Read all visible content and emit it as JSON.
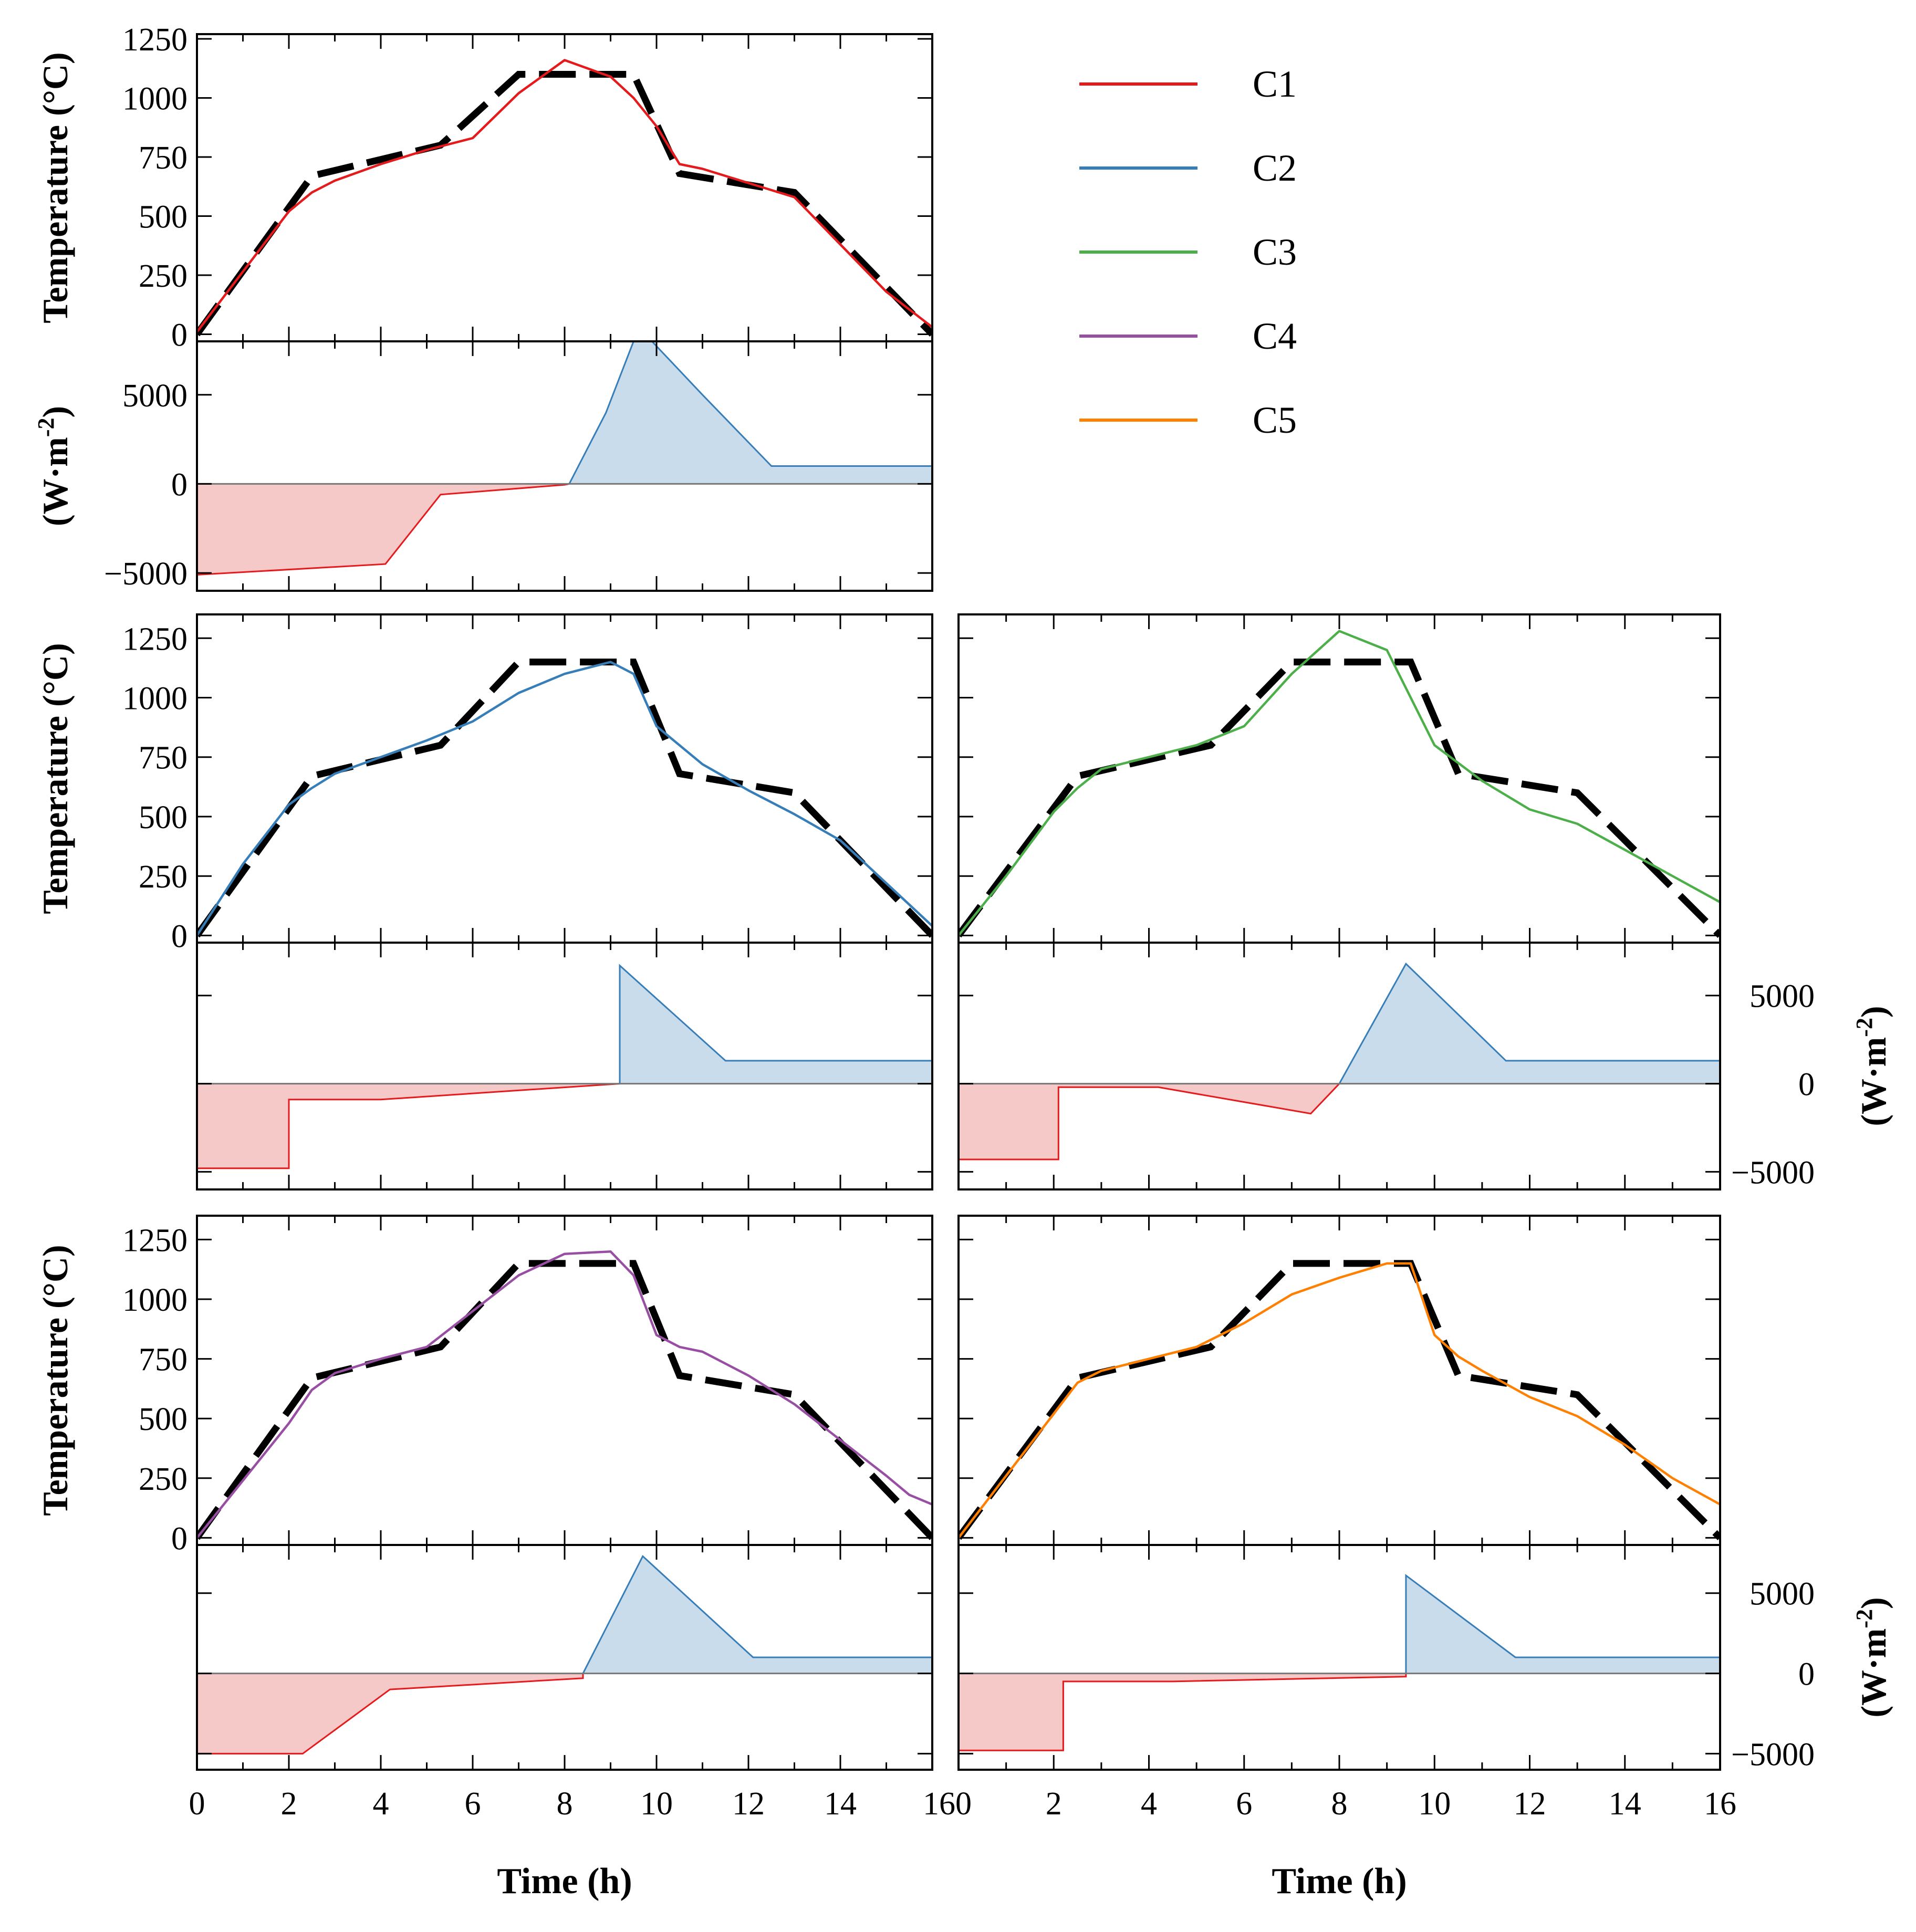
{
  "figure": {
    "x_axis_title": "Time (h)",
    "temp_axis_title": "Temperature (°C)",
    "flux_axis_title": "(W·m",
    "flux_axis_sup": "-2",
    "flux_axis_close": ")",
    "x_ticks": [
      "0",
      "2",
      "4",
      "6",
      "8",
      "10",
      "12",
      "14",
      "16"
    ],
    "x_tick_last_left": "160",
    "temp_ticks": [
      "0",
      "250",
      "500",
      "750",
      "1000",
      "1250"
    ],
    "flux_ticks": [
      "−5000",
      "0",
      "5000"
    ],
    "colors": {
      "target": "#000000",
      "C1": "#e41a1c",
      "C2": "#377eb8",
      "C3": "#4daf4a",
      "C4": "#984ea3",
      "C5": "#ff7f00",
      "heat_negative": "#e41a1c",
      "heat_negative_fill": "#f6c9c9",
      "heat_positive": "#377eb8",
      "heat_positive_fill": "#c9dcec"
    }
  },
  "legend": [
    {
      "label": "C1",
      "color": "#e41a1c"
    },
    {
      "label": "C2",
      "color": "#377eb8"
    },
    {
      "label": "C3",
      "color": "#4daf4a"
    },
    {
      "label": "C4",
      "color": "#984ea3"
    },
    {
      "label": "C5",
      "color": "#ff7f00"
    }
  ],
  "chart_data": [
    {
      "type": "line",
      "case": "C1",
      "xlabel": "Time (h)",
      "ylabel": "Temperature (°C)",
      "xlim": [
        0,
        16
      ],
      "ylim": [
        -30,
        1270
      ],
      "target": {
        "x": [
          0,
          2.5,
          5.3,
          7,
          9.5,
          10.5,
          13,
          16
        ],
        "y": [
          0,
          670,
          800,
          1100,
          1100,
          680,
          600,
          0
        ]
      },
      "simulated": {
        "x": [
          0,
          2,
          2.5,
          3,
          4,
          5,
          6,
          7,
          8,
          9,
          9.5,
          10,
          10.5,
          11,
          12,
          13,
          14,
          15,
          16
        ],
        "y": [
          10,
          520,
          600,
          650,
          720,
          780,
          830,
          1020,
          1160,
          1090,
          1000,
          880,
          720,
          700,
          640,
          580,
          380,
          180,
          30
        ]
      },
      "heat_flux": {
        "xlabel": "Time (h)",
        "ylabel": "(W·m-2)",
        "ylim": [
          -6000,
          8000
        ],
        "negative": {
          "x": [
            0,
            4.1,
            5.3,
            8,
            8.1
          ],
          "y": [
            -5100,
            -4500,
            -600,
            -50,
            0
          ]
        },
        "positive": {
          "x": [
            8.1,
            8.9,
            9.5,
            9.9,
            11,
            12.5,
            16
          ],
          "y": [
            0,
            4000,
            8000,
            8000,
            5000,
            1000,
            1000
          ]
        }
      }
    },
    {
      "type": "line",
      "case": "C2",
      "xlabel": "Time (h)",
      "ylabel": "Temperature (°C)",
      "xlim": [
        0,
        16
      ],
      "ylim": [
        -30,
        1350
      ],
      "target": {
        "x": [
          0,
          2.5,
          5.3,
          7,
          9.5,
          10.5,
          13,
          16
        ],
        "y": [
          0,
          670,
          800,
          1150,
          1150,
          680,
          600,
          0
        ]
      },
      "simulated": {
        "x": [
          0,
          1,
          2,
          2.5,
          3,
          4,
          5,
          6,
          7,
          8,
          9,
          9.5,
          10,
          11,
          12,
          13,
          14,
          15,
          16
        ],
        "y": [
          0,
          300,
          550,
          620,
          680,
          750,
          820,
          900,
          1020,
          1100,
          1150,
          1100,
          880,
          720,
          610,
          510,
          400,
          220,
          40
        ]
      },
      "heat_flux": {
        "xlabel": "Time (h)",
        "ylabel": "(W·m-2)",
        "ylim": [
          -6000,
          8000
        ],
        "negative": {
          "x": [
            0,
            2,
            2,
            4,
            9.2
          ],
          "y": [
            -4800,
            -4800,
            -900,
            -900,
            0
          ]
        },
        "positive": {
          "x": [
            9.2,
            9.2,
            11.5,
            16
          ],
          "y": [
            0,
            6700,
            1300,
            1300
          ]
        }
      }
    },
    {
      "type": "line",
      "case": "C3",
      "xlabel": "Time (h)",
      "ylabel": "Temperature (°C)",
      "xlim": [
        0,
        16
      ],
      "ylim": [
        -30,
        1350
      ],
      "target": {
        "x": [
          0,
          2.5,
          5.3,
          7,
          9.5,
          10.5,
          13,
          16
        ],
        "y": [
          0,
          670,
          800,
          1150,
          1150,
          680,
          600,
          0
        ]
      },
      "simulated": {
        "x": [
          0,
          1,
          2,
          2.5,
          3,
          4,
          5,
          6,
          7,
          8,
          9,
          10,
          11,
          12,
          13,
          14,
          15,
          16
        ],
        "y": [
          0,
          250,
          520,
          620,
          700,
          750,
          800,
          880,
          1100,
          1280,
          1200,
          800,
          650,
          530,
          470,
          360,
          250,
          140
        ]
      },
      "heat_flux": {
        "xlabel": "Time (h)",
        "ylabel": "(W·m-2)",
        "ylim": [
          -6000,
          8000
        ],
        "negative": {
          "x": [
            0,
            2.1,
            2.1,
            4.2,
            7.4,
            8
          ],
          "y": [
            -4300,
            -4300,
            -200,
            -200,
            -1700,
            0
          ]
        },
        "positive": {
          "x": [
            8,
            9.4,
            11.5,
            16
          ],
          "y": [
            0,
            6800,
            1300,
            1300
          ]
        }
      }
    },
    {
      "type": "line",
      "case": "C4",
      "xlabel": "Time (h)",
      "ylabel": "Temperature (°C)",
      "xlim": [
        0,
        16
      ],
      "ylim": [
        -30,
        1350
      ],
      "target": {
        "x": [
          0,
          2.5,
          5.3,
          7,
          9.5,
          10.5,
          13,
          16
        ],
        "y": [
          0,
          670,
          800,
          1150,
          1150,
          680,
          600,
          0
        ]
      },
      "simulated": {
        "x": [
          0,
          1,
          2,
          2.5,
          3,
          4,
          5,
          6,
          7,
          8,
          9,
          9.5,
          10,
          10.5,
          11,
          12,
          13,
          14,
          15,
          15.5,
          16
        ],
        "y": [
          0,
          240,
          480,
          620,
          690,
          750,
          800,
          950,
          1100,
          1190,
          1200,
          1100,
          850,
          800,
          780,
          680,
          560,
          410,
          260,
          180,
          140
        ]
      },
      "heat_flux": {
        "xlabel": "Time (h)",
        "ylabel": "(W·m-2)",
        "ylim": [
          -6000,
          8000
        ],
        "negative": {
          "x": [
            0,
            2.3,
            4.2,
            8.4,
            8.4
          ],
          "y": [
            -5000,
            -5000,
            -1000,
            -300,
            0
          ]
        },
        "positive": {
          "x": [
            8.4,
            9.7,
            12.1,
            16
          ],
          "y": [
            0,
            7300,
            1000,
            1000
          ]
        }
      }
    },
    {
      "type": "line",
      "case": "C5",
      "xlabel": "Time (h)",
      "ylabel": "Temperature (°C)",
      "xlim": [
        0,
        16
      ],
      "ylim": [
        -30,
        1350
      ],
      "target": {
        "x": [
          0,
          2.5,
          5.3,
          7,
          9.5,
          10.5,
          13,
          16
        ],
        "y": [
          0,
          670,
          800,
          1150,
          1150,
          680,
          600,
          0
        ]
      },
      "simulated": {
        "x": [
          0,
          1,
          2,
          2.5,
          3,
          4,
          5,
          6,
          7,
          8,
          9,
          9.5,
          10,
          10.5,
          11,
          12,
          13,
          14,
          15,
          16
        ],
        "y": [
          0,
          260,
          520,
          650,
          700,
          750,
          800,
          900,
          1020,
          1090,
          1150,
          1150,
          850,
          760,
          700,
          590,
          510,
          390,
          250,
          140
        ]
      },
      "heat_flux": {
        "xlabel": "Time (h)",
        "ylabel": "(W·m-2)",
        "ylim": [
          -6000,
          8000
        ],
        "negative": {
          "x": [
            0,
            2.2,
            2.2,
            4.5,
            9.4,
            9.4
          ],
          "y": [
            -4800,
            -4800,
            -500,
            -500,
            -200,
            0
          ]
        },
        "positive": {
          "x": [
            9.4,
            9.4,
            11.7,
            16
          ],
          "y": [
            0,
            6100,
            1000,
            1000
          ]
        }
      }
    }
  ]
}
